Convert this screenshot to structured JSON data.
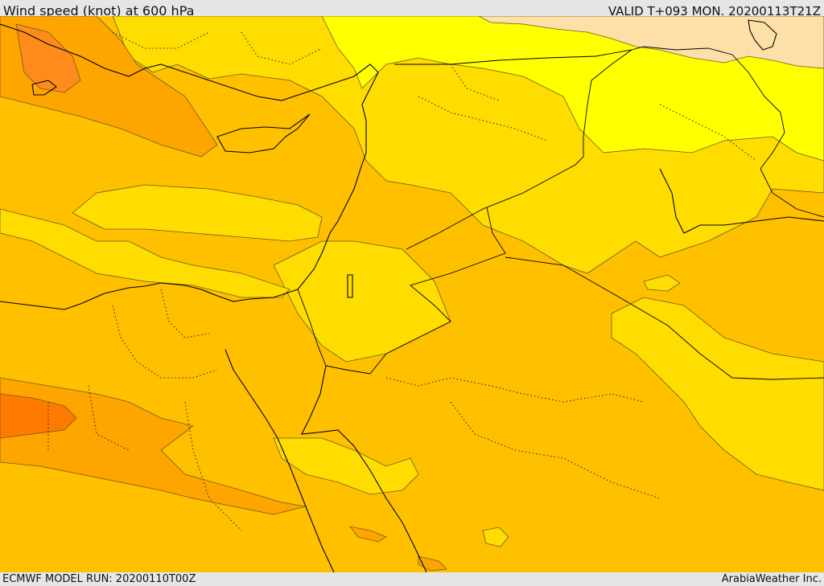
{
  "header": {
    "title": "Wind speed (knot) at 600 hPa",
    "valid": "VALID T+093 MON. 20200113T21Z"
  },
  "footer": {
    "model_run": "ECMWF MODEL RUN: 20200110T00Z",
    "credit": "ArabiaWeather Inc."
  },
  "map": {
    "variable": "wind speed",
    "unit": "knot",
    "pressure_level_hpa": 600,
    "colors": {
      "band_light_peach": "#fde0a8",
      "band_yellow": "#ffff00",
      "band_gold": "#ffdd00",
      "band_amber": "#ffc000",
      "band_orange": "#ffa500",
      "band_dark_orange": "#ff8c1a",
      "band_red_orange": "#ff7a00",
      "coastline": "#000000"
    }
  }
}
